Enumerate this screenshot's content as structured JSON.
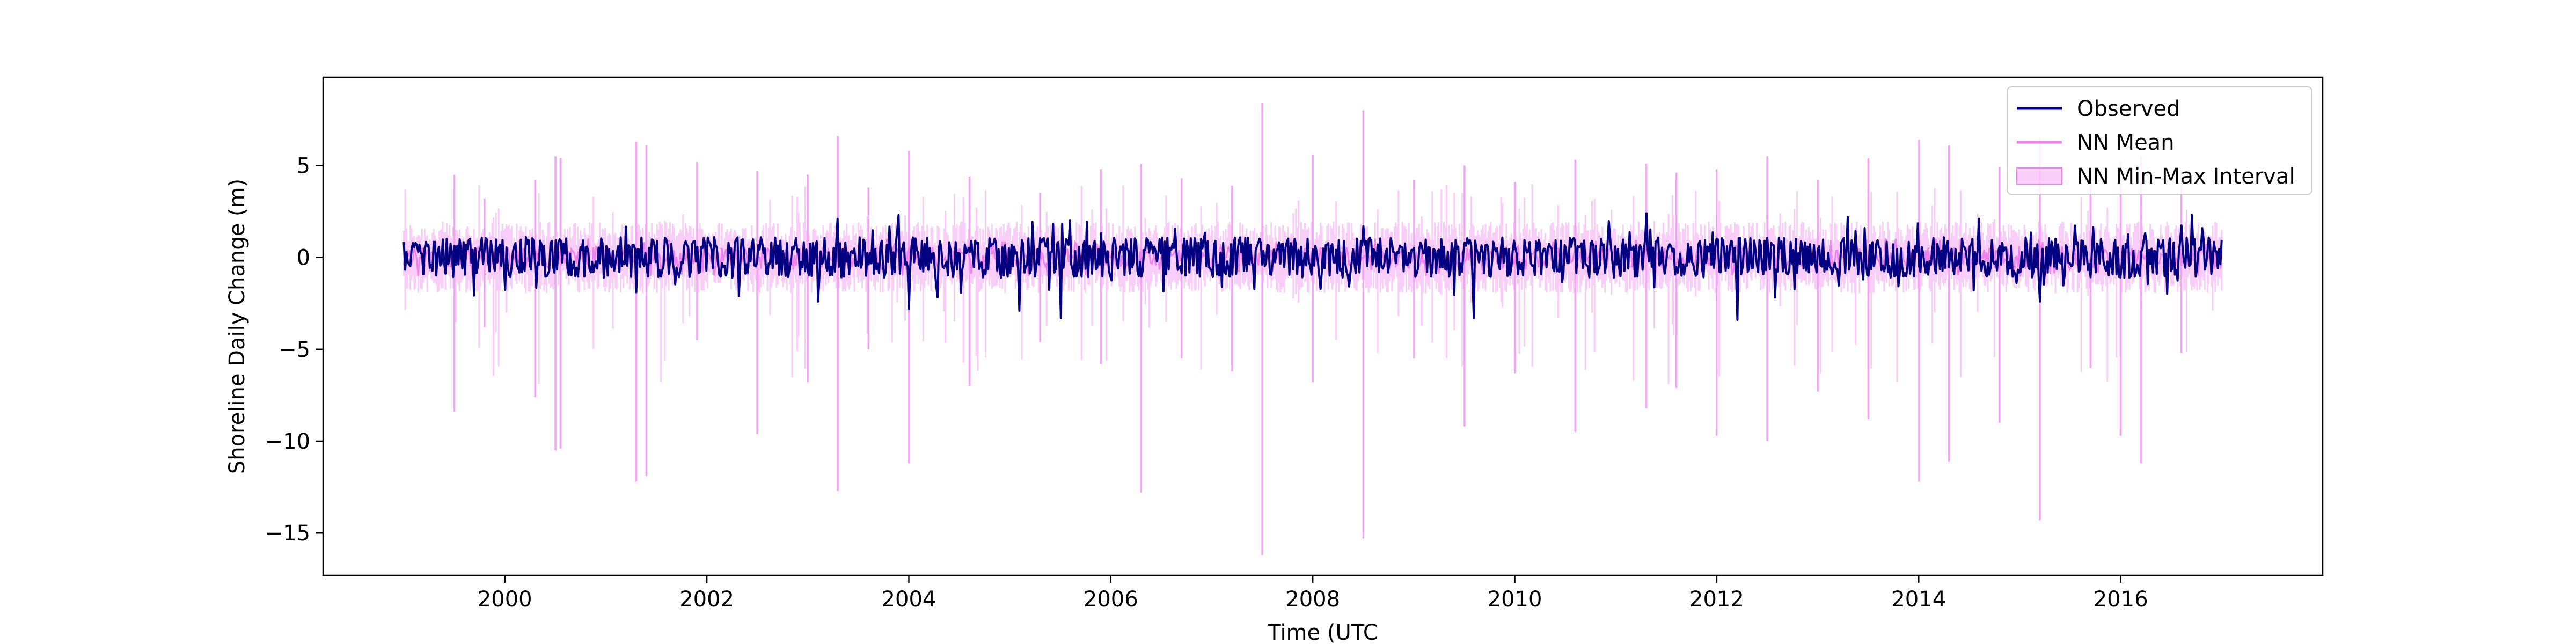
{
  "chart_data": {
    "type": "line",
    "title": "",
    "xlabel": "Time (UTC",
    "ylabel": "Shoreline Daily Change (m)",
    "x_range_years": [
      1998.2,
      2018.0
    ],
    "data_range_years": [
      1999.0,
      2017.0
    ],
    "ylim": [
      -17.3,
      9.8
    ],
    "x_ticks": [
      2000,
      2002,
      2004,
      2006,
      2008,
      2010,
      2012,
      2014,
      2016
    ],
    "x_tick_labels": [
      "2000",
      "2002",
      "2004",
      "2006",
      "2008",
      "2010",
      "2012",
      "2014",
      "2016"
    ],
    "y_ticks": [
      5,
      0,
      -5,
      -10,
      -15
    ],
    "y_tick_labels": [
      "5",
      "0",
      "−5",
      "−10",
      "−15"
    ],
    "grid": false,
    "legend_position": "top-right",
    "series": [
      {
        "name": "Observed",
        "kind": "line",
        "color": "#000080",
        "typical_range": [
          -1.0,
          1.0
        ],
        "peaks": [
          {
            "x": 2003.3,
            "y": 2.1
          },
          {
            "x": 2003.9,
            "y": 2.3
          },
          {
            "x": 2005.6,
            "y": 2.0
          },
          {
            "x": 2011.3,
            "y": 2.4
          },
          {
            "x": 2013.3,
            "y": 2.2
          },
          {
            "x": 2014.6,
            "y": 2.1
          },
          {
            "x": 2016.7,
            "y": 2.3
          }
        ],
        "troughs": [
          {
            "x": 2004.0,
            "y": -2.8
          },
          {
            "x": 2005.1,
            "y": -2.9
          },
          {
            "x": 2005.5,
            "y": -3.3
          },
          {
            "x": 2009.6,
            "y": -3.3
          },
          {
            "x": 2012.2,
            "y": -3.4
          },
          {
            "x": 2015.2,
            "y": -2.4
          },
          {
            "x": 2003.1,
            "y": -2.4
          },
          {
            "x": 2001.3,
            "y": -1.9
          }
        ]
      },
      {
        "name": "NN Mean",
        "kind": "line",
        "color": "#ee82ee",
        "typical_range": [
          -0.8,
          0.8
        ]
      },
      {
        "name": "NN Min-Max Interval",
        "kind": "band",
        "color": "#ee82ee",
        "opacity": 0.4,
        "typical_range": [
          -1.5,
          1.5
        ],
        "spikes": [
          {
            "x": 1999.5,
            "min": -8.4,
            "max": 4.5
          },
          {
            "x": 1999.8,
            "min": -3.8,
            "max": 3.2
          },
          {
            "x": 2000.3,
            "min": -7.6,
            "max": 4.2
          },
          {
            "x": 2000.5,
            "min": -10.5,
            "max": 5.5
          },
          {
            "x": 2000.55,
            "min": -10.4,
            "max": 5.4
          },
          {
            "x": 2001.3,
            "min": -12.2,
            "max": 6.3
          },
          {
            "x": 2001.4,
            "min": -11.9,
            "max": 6.1
          },
          {
            "x": 2001.9,
            "min": -4.5,
            "max": 5.2
          },
          {
            "x": 2002.5,
            "min": -9.6,
            "max": 4.7
          },
          {
            "x": 2003.0,
            "min": -6.8,
            "max": 4.5
          },
          {
            "x": 2003.3,
            "min": -12.7,
            "max": 6.6
          },
          {
            "x": 2003.6,
            "min": -5.0,
            "max": 3.8
          },
          {
            "x": 2004.0,
            "min": -11.2,
            "max": 5.8
          },
          {
            "x": 2004.6,
            "min": -7.0,
            "max": 4.4
          },
          {
            "x": 2005.3,
            "min": -4.6,
            "max": 3.5
          },
          {
            "x": 2005.9,
            "min": -5.8,
            "max": 4.8
          },
          {
            "x": 2006.3,
            "min": -12.8,
            "max": 5.1
          },
          {
            "x": 2006.7,
            "min": -5.5,
            "max": 4.3
          },
          {
            "x": 2007.2,
            "min": -6.2,
            "max": 3.9
          },
          {
            "x": 2007.5,
            "min": -16.2,
            "max": 8.4
          },
          {
            "x": 2008.0,
            "min": -6.8,
            "max": 5.6
          },
          {
            "x": 2008.5,
            "min": -15.3,
            "max": 8.0
          },
          {
            "x": 2009.0,
            "min": -5.5,
            "max": 4.2
          },
          {
            "x": 2009.5,
            "min": -9.2,
            "max": 5.0
          },
          {
            "x": 2010.0,
            "min": -6.3,
            "max": 4.1
          },
          {
            "x": 2010.6,
            "min": -9.5,
            "max": 5.3
          },
          {
            "x": 2011.3,
            "min": -8.2,
            "max": 5.1
          },
          {
            "x": 2011.6,
            "min": -7.1,
            "max": 4.6
          },
          {
            "x": 2012.0,
            "min": -9.7,
            "max": 4.8
          },
          {
            "x": 2012.5,
            "min": -10.0,
            "max": 5.5
          },
          {
            "x": 2013.0,
            "min": -7.3,
            "max": 4.2
          },
          {
            "x": 2013.5,
            "min": -8.8,
            "max": 5.4
          },
          {
            "x": 2014.0,
            "min": -12.2,
            "max": 6.4
          },
          {
            "x": 2014.3,
            "min": -11.1,
            "max": 6.1
          },
          {
            "x": 2014.8,
            "min": -9.0,
            "max": 4.9
          },
          {
            "x": 2015.2,
            "min": -14.3,
            "max": 6.5
          },
          {
            "x": 2015.7,
            "min": -6.0,
            "max": 4.0
          },
          {
            "x": 2016.0,
            "min": -9.7,
            "max": 5.2
          },
          {
            "x": 2016.2,
            "min": -11.2,
            "max": 5.5
          },
          {
            "x": 2016.6,
            "min": -5.2,
            "max": 4.7
          }
        ]
      }
    ]
  }
}
